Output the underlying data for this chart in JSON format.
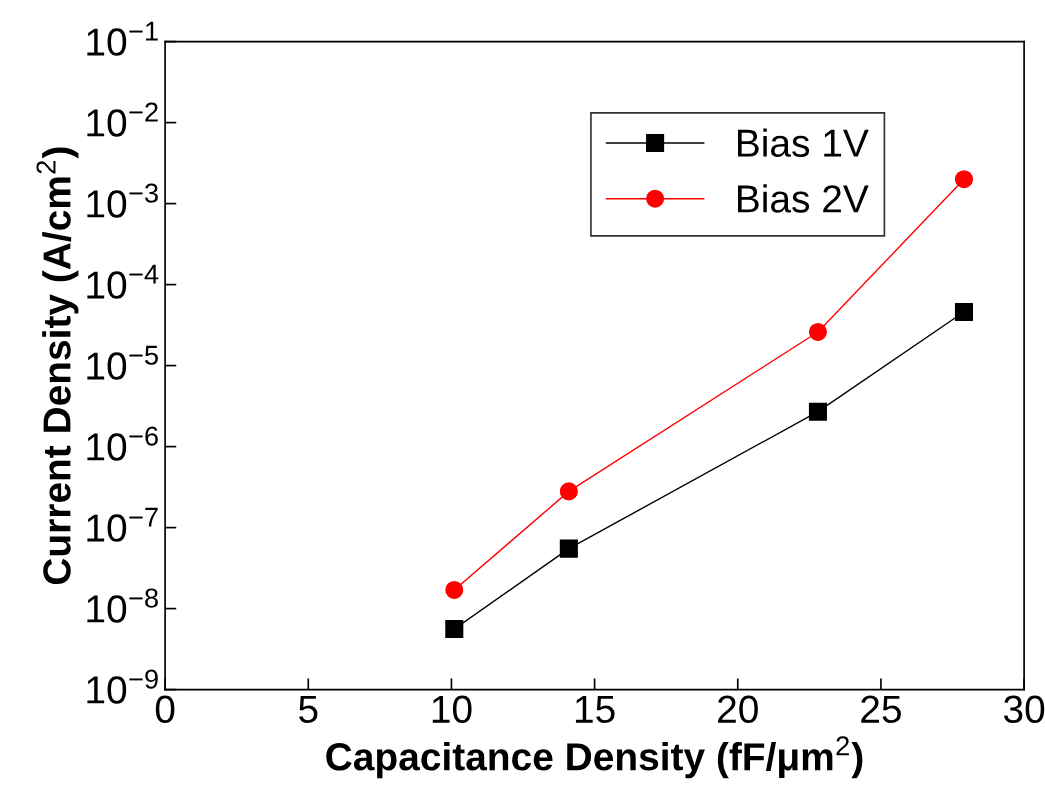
{
  "chart_data": {
    "type": "line",
    "xlabel": "Capacitance Density (fF/μm$^{2}$)",
    "ylabel": "Current Density (A/cm$^{2}$)",
    "x": [
      10.1,
      14.1,
      22.8,
      27.9
    ],
    "series": [
      {
        "name": "Bias 1V",
        "color": "#000000",
        "marker": "square",
        "values": [
          5.6e-09,
          5.5e-08,
          2.7e-06,
          4.6e-05
        ]
      },
      {
        "name": "Bias 2V",
        "color": "#ff0000",
        "marker": "circle",
        "values": [
          1.7e-08,
          2.8e-07,
          2.6e-05,
          0.002
        ]
      }
    ],
    "log": "y",
    "xlim": [
      0,
      30
    ],
    "xticks": [
      0,
      5,
      10,
      15,
      20,
      25,
      30
    ],
    "ylim": [
      1e-09,
      0.1
    ],
    "yticks": [
      {
        "value": 1e-09,
        "label": "10$^{−9}$"
      },
      {
        "value": 1e-08,
        "label": "10$^{−8}$"
      },
      {
        "value": 1e-07,
        "label": "10$^{−7}$"
      },
      {
        "value": 1e-06,
        "label": "10$^{−6}$"
      },
      {
        "value": 1e-05,
        "label": "10$^{−5}$"
      },
      {
        "value": 0.0001,
        "label": "10$^{−4}$"
      },
      {
        "value": 0.001,
        "label": "10$^{−3}$"
      },
      {
        "value": 0.01,
        "label": "10$^{−2}$"
      },
      {
        "value": 0.1,
        "label": "10$^{−1}$"
      }
    ],
    "grid": false,
    "legend": "top right",
    "line_style": "solid"
  }
}
